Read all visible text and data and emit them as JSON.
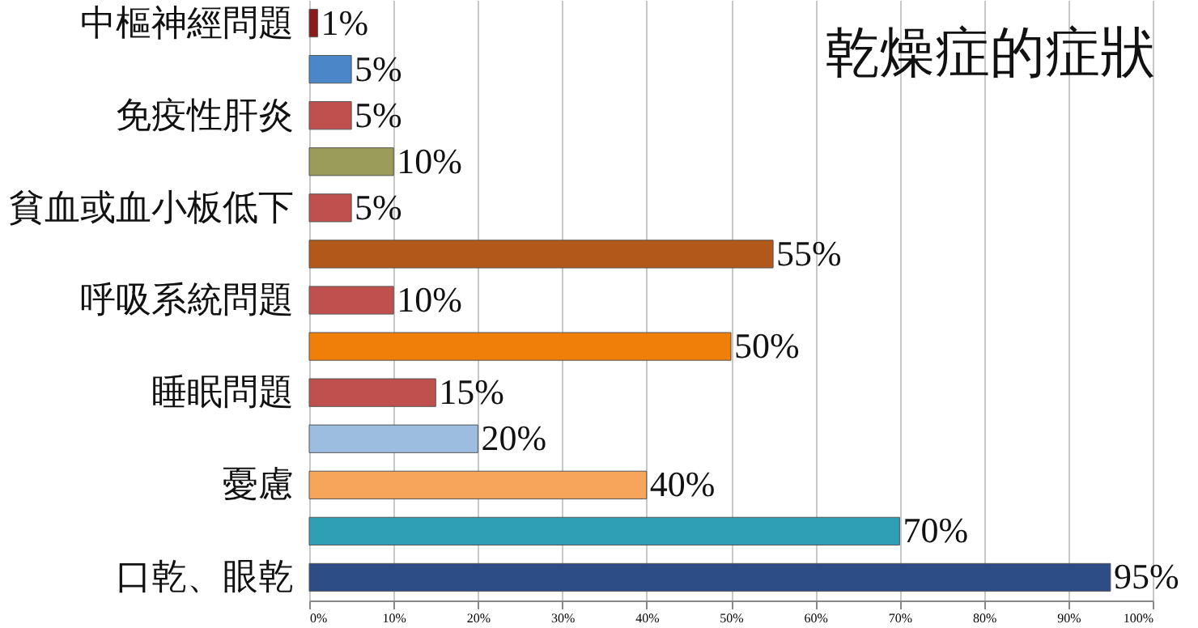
{
  "chart_data": {
    "type": "bar",
    "orientation": "horizontal",
    "title": "乾燥症的症狀",
    "categories": [
      "中樞神經問題",
      null,
      "免疫性肝炎",
      null,
      "貧血或血小板低下",
      null,
      "呼吸系統問題",
      null,
      "睡眠問題",
      null,
      "憂慮",
      null,
      "口乾、眼乾"
    ],
    "values": [
      1,
      5,
      5,
      10,
      5,
      55,
      10,
      50,
      15,
      20,
      40,
      70,
      95
    ],
    "value_labels": [
      "1%",
      "5%",
      "5%",
      "10%",
      "5%",
      "55%",
      "10%",
      "50%",
      "15%",
      "20%",
      "40%",
      "70%",
      "95%"
    ],
    "colors": [
      "#8b1a1a",
      "#4a86c8",
      "#c0504d",
      "#9b9b5a",
      "#c0504d",
      "#b3581b",
      "#c0504d",
      "#f07f09",
      "#c0504d",
      "#9dbde0",
      "#f6a55a",
      "#2f9fb5",
      "#2c4d86"
    ],
    "xlim": [
      0,
      100
    ],
    "xticks": [
      {
        "value": 0,
        "label": "0%"
      },
      {
        "value": 10,
        "label": "10%"
      },
      {
        "value": 20,
        "label": "20%"
      },
      {
        "value": 30,
        "label": "30%"
      },
      {
        "value": 40,
        "label": "40%"
      },
      {
        "value": 50,
        "label": "50%"
      },
      {
        "value": 60,
        "label": "60%"
      },
      {
        "value": 70,
        "label": "70%"
      },
      {
        "value": 80,
        "label": "80%"
      },
      {
        "value": 90,
        "label": "90%"
      },
      {
        "value": 100,
        "label": "100%"
      }
    ],
    "grid": "x"
  }
}
